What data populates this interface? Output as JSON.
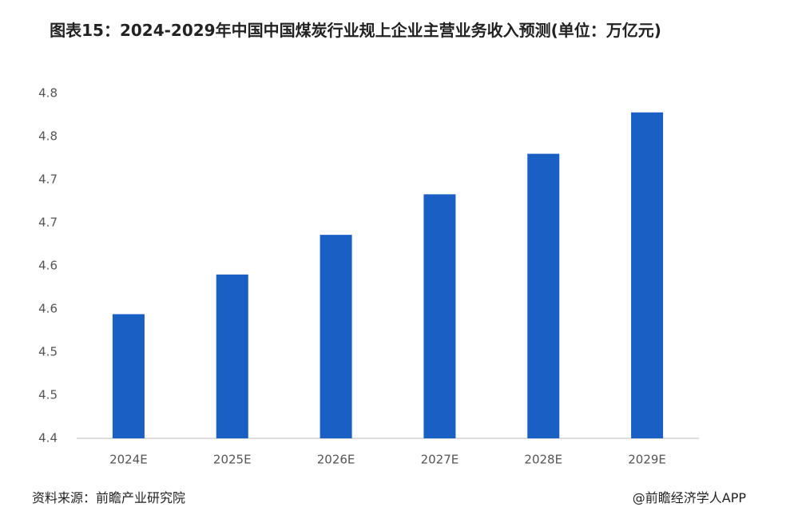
{
  "chart_data": {
    "type": "bar",
    "title": "图表15：2024-2029年中国中国煤炭行业规上企业主营业务收入预测(单位：万亿元)",
    "categories": [
      "2024E",
      "2025E",
      "2026E",
      "2027E",
      "2028E",
      "2029E"
    ],
    "values": [
      4.544,
      4.59,
      4.636,
      4.683,
      4.73,
      4.778
    ],
    "color": "#1a5fc4",
    "ylim": [
      4.4,
      4.8
    ],
    "yticks": [
      4.4,
      {
        "value": 4.45,
        "label": "4.5"
      },
      4.5,
      {
        "value": 4.55,
        "label": "4.6"
      },
      4.6,
      {
        "value": 4.65,
        "label": "4.7"
      },
      4.7,
      {
        "value": 4.75,
        "label": "4.8"
      },
      4.8
    ],
    "grid": false,
    "source": "资料来源：前瞻产业研究院",
    "brand": "@前瞻经济学人APP"
  }
}
